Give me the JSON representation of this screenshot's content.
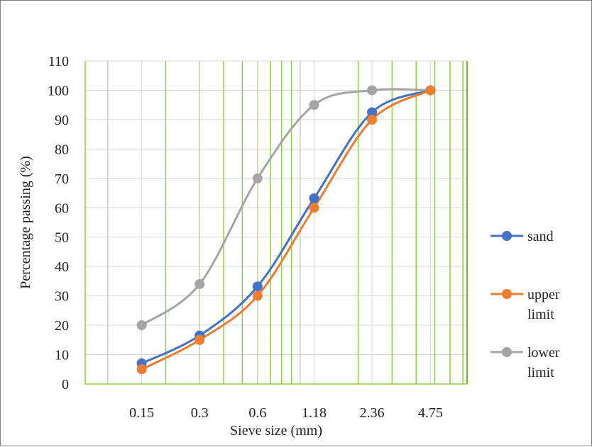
{
  "chart_data": {
    "type": "line",
    "title": "",
    "xlabel": "Sieve size (mm)",
    "ylabel": "Percentage passing (%)",
    "x": [
      0.15,
      0.3,
      0.6,
      1.18,
      2.36,
      4.75
    ],
    "x_tick_labels": [
      "0.15",
      "0.3",
      "0.6",
      "1.18",
      "2.36",
      "4.75"
    ],
    "x_scale": "log",
    "ylim": [
      0,
      110
    ],
    "y_ticks": [
      0,
      10,
      20,
      30,
      40,
      50,
      60,
      70,
      80,
      90,
      100,
      110
    ],
    "grid": true,
    "legend_position": "right",
    "series": [
      {
        "name": "sand",
        "color": "#4472c4",
        "values": [
          7,
          16.5,
          33.2,
          63.2,
          92.5,
          100
        ]
      },
      {
        "name": "upper limit",
        "color": "#ed7d31",
        "values": [
          5,
          15,
          30,
          60,
          90,
          100
        ]
      },
      {
        "name": "lower limit",
        "color": "#a5a5a5",
        "values": [
          20,
          34,
          70,
          95,
          100,
          100
        ]
      }
    ],
    "legend": {
      "entries": [
        {
          "lines": [
            "sand"
          ]
        },
        {
          "lines": [
            "upper",
            "limit"
          ]
        },
        {
          "lines": [
            "lower",
            "limit"
          ]
        }
      ]
    }
  }
}
